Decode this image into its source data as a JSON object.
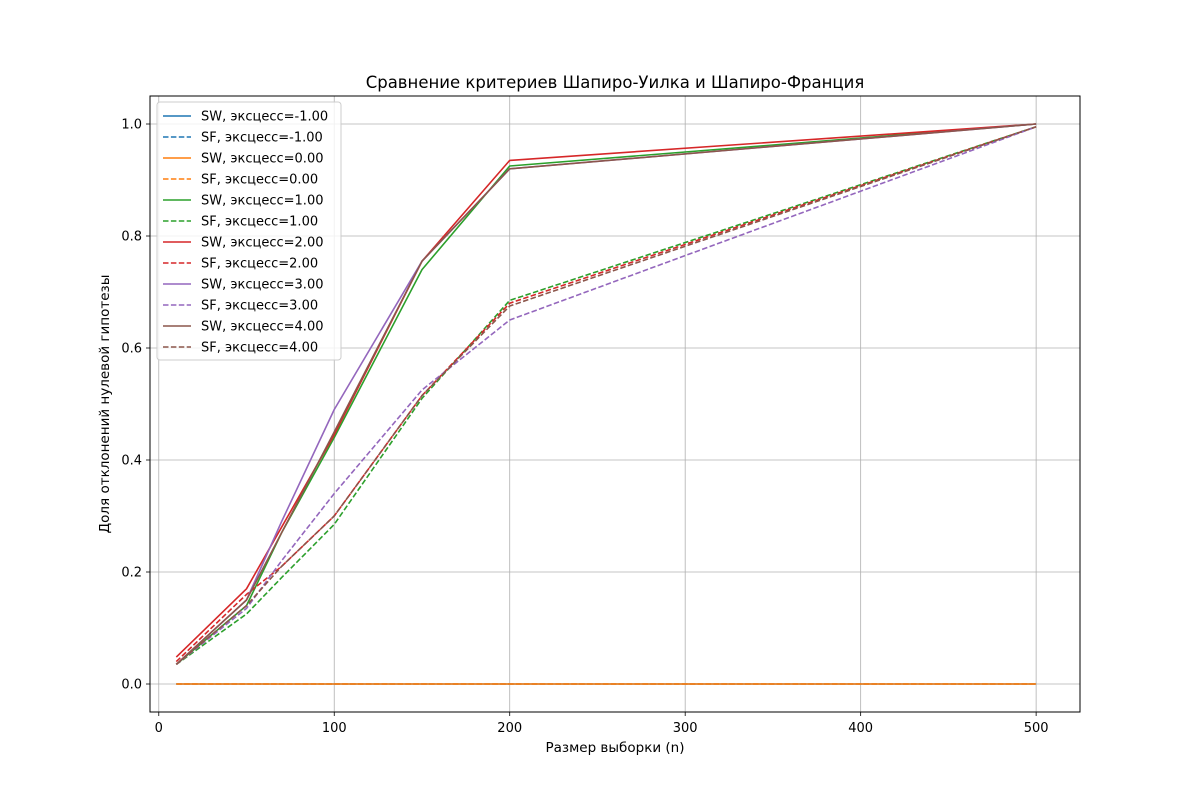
{
  "chart_data": {
    "type": "line",
    "title": "Сравнение критериев Шапиро-Уилка и Шапиро-Франция",
    "xlabel": "Размер выборки (n)",
    "ylabel": "Доля отклонений нулевой гипотезы",
    "xlim": [
      -5,
      525
    ],
    "ylim": [
      -0.05,
      1.05
    ],
    "xticks": [
      0,
      100,
      200,
      300,
      400,
      500
    ],
    "yticks": [
      0.0,
      0.2,
      0.4,
      0.6,
      0.8,
      1.0
    ],
    "grid": true,
    "legend_position": "top-left",
    "x": [
      10,
      50,
      70,
      100,
      150,
      200,
      500
    ],
    "series": [
      {
        "name": "SW, эксцесс=-1.00",
        "color": "#1f77b4",
        "dash": false,
        "values": [
          0,
          0,
          0,
          0,
          0,
          0,
          0
        ]
      },
      {
        "name": "SF, эксцесс=-1.00",
        "color": "#1f77b4",
        "dash": true,
        "values": [
          0,
          0,
          0,
          0,
          0,
          0,
          0
        ]
      },
      {
        "name": "SW, эксцесс=0.00",
        "color": "#ff7f0e",
        "dash": false,
        "values": [
          0,
          0,
          0,
          0,
          0,
          0,
          0
        ]
      },
      {
        "name": "SF, эксцесс=0.00",
        "color": "#ff7f0e",
        "dash": true,
        "values": [
          0,
          0,
          0,
          0,
          0,
          0,
          0
        ]
      },
      {
        "name": "SW, эксцесс=1.00",
        "color": "#2ca02c",
        "dash": false,
        "values": [
          0.035,
          0.14,
          0.27,
          0.44,
          0.74,
          0.925,
          1.0
        ]
      },
      {
        "name": "SF, эксцесс=1.00",
        "color": "#2ca02c",
        "dash": true,
        "values": [
          0.035,
          0.125,
          0.19,
          0.285,
          0.51,
          0.685,
          0.995
        ]
      },
      {
        "name": "SW, эксцесс=2.00",
        "color": "#d62728",
        "dash": false,
        "values": [
          0.048,
          0.17,
          0.28,
          0.445,
          0.755,
          0.935,
          1.0
        ]
      },
      {
        "name": "SF, эксцесс=2.00",
        "color": "#d62728",
        "dash": true,
        "values": [
          0.04,
          0.16,
          0.21,
          0.3,
          0.515,
          0.68,
          0.995
        ]
      },
      {
        "name": "SW, эксцесс=3.00",
        "color": "#9467bd",
        "dash": false,
        "values": [
          0.035,
          0.15,
          0.29,
          0.49,
          0.755,
          0.92,
          1.0
        ]
      },
      {
        "name": "SF, эксцесс=3.00",
        "color": "#9467bd",
        "dash": true,
        "values": [
          0.035,
          0.135,
          0.22,
          0.34,
          0.525,
          0.65,
          0.995
        ]
      },
      {
        "name": "SW, эксцесс=4.00",
        "color": "#8c564b",
        "dash": false,
        "values": [
          0.035,
          0.15,
          0.27,
          0.45,
          0.755,
          0.92,
          1.0
        ]
      },
      {
        "name": "SF, эксцесс=4.00",
        "color": "#8c564b",
        "dash": true,
        "values": [
          0.035,
          0.14,
          0.21,
          0.3,
          0.515,
          0.675,
          0.995
        ]
      }
    ]
  }
}
